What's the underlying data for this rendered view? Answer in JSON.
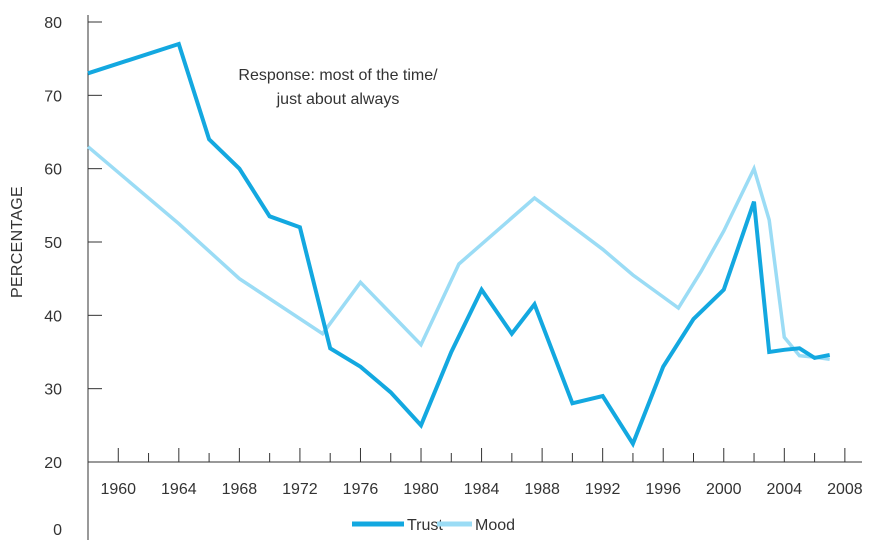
{
  "chart_data": {
    "type": "line",
    "title": "",
    "xlabel": "",
    "ylabel": "PERCENTAGE",
    "annotation": [
      "Response: most of the time/",
      "just about always"
    ],
    "xlim": [
      1958,
      2009
    ],
    "ylim": [
      20,
      80
    ],
    "y_ticks": [
      80,
      70,
      60,
      50,
      40,
      30,
      20
    ],
    "y_extra_label": "0",
    "x_ticks": [
      1960,
      1964,
      1968,
      1972,
      1976,
      1980,
      1984,
      1988,
      1992,
      1996,
      2000,
      2004,
      2008
    ],
    "grid": false,
    "legend_position": "bottom-center",
    "series": [
      {
        "name": "Trust",
        "color": "#13a8e0",
        "x": [
          1958,
          1964,
          1966,
          1968,
          1970,
          1972,
          1974,
          1976,
          1978,
          1980,
          1982,
          1984,
          1986,
          1987.5,
          1990,
          1992,
          1994,
          1996,
          1998,
          2000,
          2002,
          2003,
          2004,
          2005,
          2006,
          2007
        ],
        "y": [
          73,
          77,
          64,
          60,
          53.5,
          52,
          35.5,
          33,
          29.5,
          25,
          35,
          43.5,
          37.5,
          41.5,
          28,
          29,
          22.5,
          33,
          39.5,
          43.5,
          55.5,
          35,
          35.3,
          35.5,
          34.2,
          34.6
        ]
      },
      {
        "name": "Mood",
        "color": "#9bdcf5",
        "x": [
          1958,
          1964,
          1968,
          1973.5,
          1976,
          1980,
          1982.5,
          1987.5,
          1992,
          1994,
          1997,
          1998.5,
          2000,
          2002,
          2003,
          2004,
          2005,
          2006,
          2007
        ],
        "y": [
          63,
          52.5,
          45,
          37.5,
          44.5,
          36,
          47,
          56,
          49,
          45.5,
          41,
          46,
          51.5,
          60,
          53,
          37,
          34.5,
          34.3,
          34
        ]
      }
    ]
  }
}
